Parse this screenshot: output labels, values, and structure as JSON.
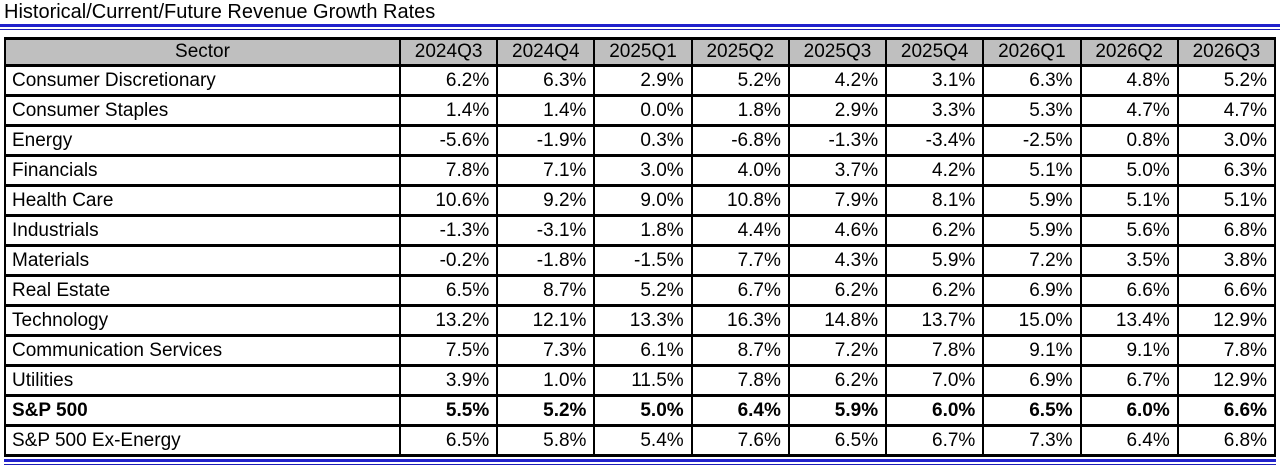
{
  "title": "Historical/Current/Future Revenue Growth Rates",
  "colors": {
    "accent_blue": "#2222cc",
    "header_bg": "#bfbfbf",
    "grid": "#000000"
  },
  "chart_data": {
    "type": "table",
    "title": "Historical/Current/Future Revenue Growth Rates",
    "columns": [
      "Sector",
      "2024Q3",
      "2024Q4",
      "2025Q1",
      "2025Q2",
      "2025Q3",
      "2025Q4",
      "2026Q1",
      "2026Q2",
      "2026Q3"
    ],
    "rows": [
      {
        "sector": "Consumer Discretionary",
        "bold": false,
        "values": [
          "6.2%",
          "6.3%",
          "2.9%",
          "5.2%",
          "4.2%",
          "3.1%",
          "6.3%",
          "4.8%",
          "5.2%"
        ]
      },
      {
        "sector": "Consumer Staples",
        "bold": false,
        "values": [
          "1.4%",
          "1.4%",
          "0.0%",
          "1.8%",
          "2.9%",
          "3.3%",
          "5.3%",
          "4.7%",
          "4.7%"
        ]
      },
      {
        "sector": "Energy",
        "bold": false,
        "values": [
          "-5.6%",
          "-1.9%",
          "0.3%",
          "-6.8%",
          "-1.3%",
          "-3.4%",
          "-2.5%",
          "0.8%",
          "3.0%"
        ]
      },
      {
        "sector": "Financials",
        "bold": false,
        "values": [
          "7.8%",
          "7.1%",
          "3.0%",
          "4.0%",
          "3.7%",
          "4.2%",
          "5.1%",
          "5.0%",
          "6.3%"
        ]
      },
      {
        "sector": "Health Care",
        "bold": false,
        "values": [
          "10.6%",
          "9.2%",
          "9.0%",
          "10.8%",
          "7.9%",
          "8.1%",
          "5.9%",
          "5.1%",
          "5.1%"
        ]
      },
      {
        "sector": "Industrials",
        "bold": false,
        "values": [
          "-1.3%",
          "-3.1%",
          "1.8%",
          "4.4%",
          "4.6%",
          "6.2%",
          "5.9%",
          "5.6%",
          "6.8%"
        ]
      },
      {
        "sector": "Materials",
        "bold": false,
        "values": [
          "-0.2%",
          "-1.8%",
          "-1.5%",
          "7.7%",
          "4.3%",
          "5.9%",
          "7.2%",
          "3.5%",
          "3.8%"
        ]
      },
      {
        "sector": "Real Estate",
        "bold": false,
        "values": [
          "6.5%",
          "8.7%",
          "5.2%",
          "6.7%",
          "6.2%",
          "6.2%",
          "6.9%",
          "6.6%",
          "6.6%"
        ]
      },
      {
        "sector": "Technology",
        "bold": false,
        "values": [
          "13.2%",
          "12.1%",
          "13.3%",
          "16.3%",
          "14.8%",
          "13.7%",
          "15.0%",
          "13.4%",
          "12.9%"
        ]
      },
      {
        "sector": "Communication Services",
        "bold": false,
        "values": [
          "7.5%",
          "7.3%",
          "6.1%",
          "8.7%",
          "7.2%",
          "7.8%",
          "9.1%",
          "9.1%",
          "7.8%"
        ]
      },
      {
        "sector": "Utilities",
        "bold": false,
        "values": [
          "3.9%",
          "1.0%",
          "11.5%",
          "7.8%",
          "6.2%",
          "7.0%",
          "6.9%",
          "6.7%",
          "12.9%"
        ]
      },
      {
        "sector": "S&P 500",
        "bold": true,
        "values": [
          "5.5%",
          "5.2%",
          "5.0%",
          "6.4%",
          "5.9%",
          "6.0%",
          "6.5%",
          "6.0%",
          "6.6%"
        ]
      },
      {
        "sector": "S&P 500 Ex-Energy",
        "bold": false,
        "values": [
          "6.5%",
          "5.8%",
          "5.4%",
          "7.6%",
          "6.5%",
          "6.7%",
          "7.3%",
          "6.4%",
          "6.8%"
        ]
      }
    ]
  }
}
